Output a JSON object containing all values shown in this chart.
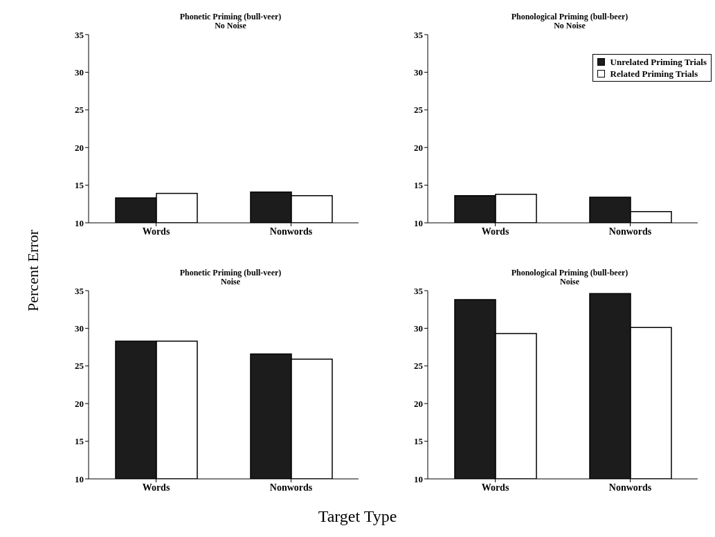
{
  "chart_data": [
    {
      "type": "bar",
      "title": "Phonetic Priming (bull-veer)",
      "subtitle": "No Noise",
      "ylabel": "Percent Error",
      "categories": [
        "Words",
        "Nonwords"
      ],
      "ylim": [
        10,
        35
      ],
      "yticks": [
        10,
        15,
        20,
        25,
        30,
        35
      ],
      "grid": false,
      "legend": false,
      "series": [
        {
          "color": "#1c1c1c",
          "values": [
            13.3,
            14.1
          ]
        },
        {
          "color": "#ffffff",
          "values": [
            13.9,
            13.6
          ]
        }
      ]
    },
    {
      "type": "bar",
      "title": "Phonological Priming (bull-beer)",
      "subtitle": "No Noise",
      "categories": [
        "Words",
        "Nonwords"
      ],
      "ylim": [
        10,
        35
      ],
      "yticks": [
        10,
        15,
        20,
        25,
        30,
        35
      ],
      "grid": false,
      "legend": "top right",
      "series": [
        {
          "name": "Unrelated Priming Trials",
          "color": "#1c1c1c",
          "values": [
            13.6,
            13.4
          ]
        },
        {
          "name": "Related Priming Trials",
          "color": "#ffffff",
          "values": [
            13.8,
            11.5
          ]
        }
      ]
    },
    {
      "type": "bar",
      "title": "Phonetic Priming (bull-veer)",
      "subtitle": "Noise",
      "xlabel": "Target Type",
      "categories": [
        "Words",
        "Nonwords"
      ],
      "ylim": [
        10,
        35
      ],
      "yticks": [
        10,
        15,
        20,
        25,
        30,
        35
      ],
      "grid": false,
      "legend": false,
      "series": [
        {
          "color": "#1c1c1c",
          "values": [
            28.3,
            26.6
          ]
        },
        {
          "color": "#ffffff",
          "values": [
            28.3,
            25.9
          ]
        }
      ]
    },
    {
      "type": "bar",
      "title": "Phonological Priming (bull-beer)",
      "subtitle": "Noise",
      "categories": [
        "Words",
        "Nonwords"
      ],
      "ylim": [
        10,
        35
      ],
      "yticks": [
        10,
        15,
        20,
        25,
        30,
        35
      ],
      "grid": false,
      "legend": false,
      "series": [
        {
          "color": "#1c1c1c",
          "values": [
            33.8,
            34.6
          ]
        },
        {
          "color": "#ffffff",
          "values": [
            29.3,
            30.1
          ]
        }
      ]
    }
  ]
}
